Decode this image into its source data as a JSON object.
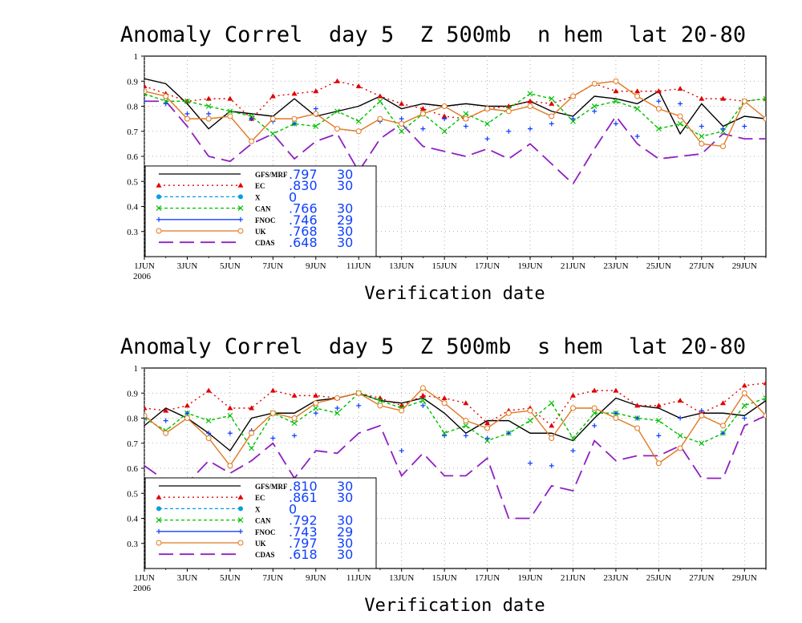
{
  "chart_data": [
    {
      "type": "line",
      "title": "Anomaly Correl  day 5  Z 500mb  n hem  lat 20-80",
      "xlabel": "Verification date",
      "ylabel": "",
      "ylim": [
        0.2,
        1.0
      ],
      "xlim": [
        1,
        30
      ],
      "yticks": [
        "1",
        "0.9",
        "0.8",
        "0.7",
        "0.6",
        "0.5",
        "0.4",
        "0.3"
      ],
      "xticks": [
        {
          "day": 1,
          "label": "1JUN",
          "sub": "2006"
        },
        {
          "day": 3,
          "label": "3JUN"
        },
        {
          "day": 5,
          "label": "5JUN"
        },
        {
          "day": 7,
          "label": "7JUN"
        },
        {
          "day": 9,
          "label": "9JUN"
        },
        {
          "day": 11,
          "label": "11JUN"
        },
        {
          "day": 13,
          "label": "13JUN"
        },
        {
          "day": 15,
          "label": "15JUN"
        },
        {
          "day": 17,
          "label": "17JUN"
        },
        {
          "day": 19,
          "label": "19JUN"
        },
        {
          "day": 21,
          "label": "21JUN"
        },
        {
          "day": 23,
          "label": "23JUN"
        },
        {
          "day": 25,
          "label": "25JUN"
        },
        {
          "day": 27,
          "label": "27JUN"
        },
        {
          "day": 29,
          "label": "29JUN"
        }
      ],
      "grid": true,
      "legend_placement": "bottom-left",
      "series": [
        {
          "name": "GFS/MRF",
          "mean": ".797",
          "count": "30",
          "color": "#000000",
          "dash": "",
          "marker": "none",
          "x": [
            1,
            2,
            3,
            4,
            5,
            6,
            7,
            8,
            9,
            10,
            11,
            12,
            13,
            14,
            15,
            16,
            17,
            18,
            19,
            20,
            21,
            22,
            23,
            24,
            25,
            26,
            27,
            28,
            29,
            30
          ],
          "values": [
            0.91,
            0.89,
            0.81,
            0.71,
            0.78,
            0.77,
            0.76,
            0.83,
            0.76,
            0.78,
            0.8,
            0.84,
            0.79,
            0.81,
            0.8,
            0.81,
            0.8,
            0.8,
            0.82,
            0.78,
            0.76,
            0.84,
            0.83,
            0.81,
            0.86,
            0.69,
            0.81,
            0.72,
            0.76,
            0.75
          ]
        },
        {
          "name": "EC",
          "mean": ".830",
          "count": "30",
          "color": "#e00000",
          "dash": "2,4",
          "marker": "triangle",
          "x": [
            1,
            2,
            3,
            4,
            5,
            6,
            7,
            8,
            9,
            10,
            11,
            12,
            13,
            14,
            15,
            16,
            17,
            18,
            19,
            20,
            21,
            22,
            23,
            24,
            25,
            26,
            27,
            28,
            29,
            30
          ],
          "values": [
            0.88,
            0.85,
            0.82,
            0.83,
            0.83,
            0.75,
            0.84,
            0.85,
            0.86,
            0.9,
            0.88,
            0.84,
            0.81,
            0.79,
            0.76,
            0.75,
            0.79,
            0.8,
            0.82,
            0.81,
            0.84,
            0.89,
            0.86,
            0.86,
            0.86,
            0.87,
            0.83,
            0.83,
            0.82,
            0.83
          ]
        },
        {
          "name": "X",
          "mean": "0",
          "count": "",
          "color": "#00a0e0",
          "dash": "4,3",
          "marker": "circle",
          "x": [],
          "values": []
        },
        {
          "name": "CAN",
          "mean": ".766",
          "count": "30",
          "color": "#00c000",
          "dash": "4,3",
          "marker": "x",
          "x": [
            1,
            2,
            3,
            4,
            5,
            6,
            7,
            8,
            9,
            10,
            11,
            12,
            13,
            14,
            15,
            16,
            17,
            18,
            19,
            20,
            21,
            22,
            23,
            24,
            25,
            26,
            27,
            28,
            29,
            30
          ],
          "values": [
            0.85,
            0.82,
            0.82,
            0.8,
            0.78,
            0.76,
            0.69,
            0.73,
            0.72,
            0.78,
            0.74,
            0.82,
            0.7,
            0.77,
            0.7,
            0.77,
            0.73,
            0.79,
            0.85,
            0.83,
            0.74,
            0.8,
            0.82,
            0.79,
            0.71,
            0.73,
            0.68,
            0.7,
            0.82,
            0.83
          ]
        },
        {
          "name": "FNOC",
          "mean": ".746",
          "count": "29",
          "color": "#1040ff",
          "dash": "",
          "marker": "plus",
          "x": [
            1,
            2,
            3,
            4,
            5,
            6,
            7,
            8,
            9,
            10,
            11,
            12,
            13,
            14,
            15,
            16,
            17,
            18,
            19,
            20,
            21,
            22,
            23,
            24,
            25,
            26,
            27,
            28,
            29
          ],
          "values": [
            0.82,
            0.81,
            0.77,
            0.77,
            0.76,
            0.75,
            0.74,
            0.73,
            0.79,
            0.71,
            0.7,
            0.74,
            0.75,
            0.71,
            0.75,
            0.72,
            0.67,
            0.7,
            0.71,
            0.73,
            0.75,
            0.78,
            0.73,
            0.68,
            0.82,
            0.81,
            0.72,
            0.71,
            0.72
          ]
        },
        {
          "name": "UK",
          "mean": ".768",
          "count": "30",
          "color": "#e07820",
          "dash": "",
          "marker": "circle-open",
          "x": [
            1,
            2,
            3,
            4,
            5,
            6,
            7,
            8,
            9,
            10,
            11,
            12,
            13,
            14,
            15,
            16,
            17,
            18,
            19,
            20,
            21,
            22,
            23,
            24,
            25,
            26,
            27,
            28,
            29,
            30
          ],
          "values": [
            0.86,
            0.84,
            0.75,
            0.75,
            0.76,
            0.66,
            0.75,
            0.75,
            0.77,
            0.71,
            0.7,
            0.75,
            0.73,
            0.77,
            0.8,
            0.75,
            0.79,
            0.78,
            0.8,
            0.76,
            0.84,
            0.89,
            0.9,
            0.84,
            0.79,
            0.76,
            0.65,
            0.64,
            0.82,
            0.75
          ]
        },
        {
          "name": "CDAS",
          "mean": ".648",
          "count": "30",
          "color": "#9020c0",
          "dash": "18,8",
          "marker": "none",
          "x": [
            1,
            2,
            3,
            4,
            5,
            6,
            7,
            8,
            9,
            10,
            11,
            12,
            13,
            14,
            15,
            16,
            17,
            18,
            19,
            20,
            21,
            22,
            23,
            24,
            25,
            26,
            27,
            28,
            29,
            30
          ],
          "values": [
            0.82,
            0.82,
            0.72,
            0.6,
            0.58,
            0.65,
            0.69,
            0.59,
            0.66,
            0.69,
            0.54,
            0.67,
            0.73,
            0.64,
            0.62,
            0.6,
            0.63,
            0.59,
            0.65,
            0.57,
            0.49,
            0.63,
            0.76,
            0.65,
            0.59,
            0.6,
            0.61,
            0.69,
            0.67,
            0.67
          ]
        }
      ]
    },
    {
      "type": "line",
      "title": "Anomaly Correl  day 5  Z 500mb  s hem  lat 20-80",
      "xlabel": "Verification date",
      "ylabel": "",
      "ylim": [
        0.2,
        1.0
      ],
      "xlim": [
        1,
        30
      ],
      "yticks": [
        "1",
        "0.9",
        "0.8",
        "0.7",
        "0.6",
        "0.5",
        "0.4",
        "0.3"
      ],
      "xticks": [
        {
          "day": 1,
          "label": "1JUN",
          "sub": "2006"
        },
        {
          "day": 3,
          "label": "3JUN"
        },
        {
          "day": 5,
          "label": "5JUN"
        },
        {
          "day": 7,
          "label": "7JUN"
        },
        {
          "day": 9,
          "label": "9JUN"
        },
        {
          "day": 11,
          "label": "11JUN"
        },
        {
          "day": 13,
          "label": "13JUN"
        },
        {
          "day": 15,
          "label": "15JUN"
        },
        {
          "day": 17,
          "label": "17JUN"
        },
        {
          "day": 19,
          "label": "19JUN"
        },
        {
          "day": 21,
          "label": "21JUN"
        },
        {
          "day": 23,
          "label": "23JUN"
        },
        {
          "day": 25,
          "label": "25JUN"
        },
        {
          "day": 27,
          "label": "27JUN"
        },
        {
          "day": 29,
          "label": "29JUN"
        }
      ],
      "grid": true,
      "legend_placement": "bottom-left",
      "series": [
        {
          "name": "GFS/MRF",
          "mean": ".810",
          "count": "30",
          "color": "#000000",
          "dash": "",
          "marker": "none",
          "x": [
            1,
            2,
            3,
            4,
            5,
            6,
            7,
            8,
            9,
            10,
            11,
            12,
            13,
            14,
            15,
            16,
            17,
            18,
            19,
            20,
            21,
            22,
            23,
            24,
            25,
            26,
            27,
            28,
            29,
            30
          ],
          "values": [
            0.77,
            0.84,
            0.8,
            0.74,
            0.67,
            0.8,
            0.82,
            0.82,
            0.87,
            0.88,
            0.9,
            0.87,
            0.86,
            0.88,
            0.82,
            0.74,
            0.79,
            0.79,
            0.74,
            0.74,
            0.71,
            0.8,
            0.88,
            0.85,
            0.84,
            0.8,
            0.82,
            0.82,
            0.81,
            0.87
          ]
        },
        {
          "name": "EC",
          "mean": ".861",
          "count": "30",
          "color": "#e00000",
          "dash": "2,4",
          "marker": "triangle",
          "x": [
            1,
            2,
            3,
            4,
            5,
            6,
            7,
            8,
            9,
            10,
            11,
            12,
            13,
            14,
            15,
            16,
            17,
            18,
            19,
            20,
            21,
            22,
            23,
            24,
            25,
            26,
            27,
            28,
            29,
            30
          ],
          "values": [
            0.84,
            0.83,
            0.85,
            0.91,
            0.84,
            0.84,
            0.91,
            0.89,
            0.89,
            0.88,
            0.9,
            0.88,
            0.85,
            0.89,
            0.88,
            0.86,
            0.78,
            0.83,
            0.84,
            0.77,
            0.89,
            0.91,
            0.91,
            0.85,
            0.85,
            0.87,
            0.82,
            0.86,
            0.93,
            0.94
          ]
        },
        {
          "name": "X",
          "mean": "0",
          "count": "",
          "color": "#00a0e0",
          "dash": "4,3",
          "marker": "circle",
          "x": [],
          "values": []
        },
        {
          "name": "CAN",
          "mean": ".792",
          "count": "30",
          "color": "#00c000",
          "dash": "4,3",
          "marker": "x",
          "x": [
            1,
            2,
            3,
            4,
            5,
            6,
            7,
            8,
            9,
            10,
            11,
            12,
            13,
            14,
            15,
            16,
            17,
            18,
            19,
            20,
            21,
            22,
            23,
            24,
            25,
            26,
            27,
            28,
            29,
            30
          ],
          "values": [
            0.8,
            0.75,
            0.82,
            0.79,
            0.81,
            0.68,
            0.82,
            0.78,
            0.84,
            0.82,
            0.9,
            0.87,
            0.84,
            0.87,
            0.74,
            0.77,
            0.71,
            0.74,
            0.79,
            0.86,
            0.72,
            0.82,
            0.82,
            0.8,
            0.79,
            0.73,
            0.7,
            0.74,
            0.85,
            0.88
          ]
        },
        {
          "name": "FNOC",
          "mean": ".743",
          "count": "29",
          "color": "#1040ff",
          "dash": "",
          "marker": "plus",
          "x": [
            1,
            2,
            3,
            4,
            5,
            6,
            7,
            8,
            9,
            10,
            11,
            12,
            13,
            14,
            15,
            16,
            17,
            18,
            19,
            20,
            21,
            22,
            23,
            24,
            25,
            26,
            27,
            28,
            29
          ],
          "values": [
            0.8,
            0.79,
            0.82,
            0.74,
            0.74,
            0.75,
            0.72,
            0.73,
            0.82,
            0.84,
            0.85,
            0.85,
            0.67,
            0.85,
            0.73,
            0.73,
            0.72,
            0.74,
            0.62,
            0.61,
            0.67,
            0.77,
            0.82,
            0.8,
            0.73,
            0.8,
            0.83,
            0.74,
            0.8
          ]
        },
        {
          "name": "UK",
          "mean": ".797",
          "count": "30",
          "color": "#e07820",
          "dash": "",
          "marker": "circle-open",
          "x": [
            1,
            2,
            3,
            4,
            5,
            6,
            7,
            8,
            9,
            10,
            11,
            12,
            13,
            14,
            15,
            16,
            17,
            18,
            19,
            20,
            21,
            22,
            23,
            24,
            25,
            26,
            27,
            28,
            29,
            30
          ],
          "values": [
            0.81,
            0.74,
            0.8,
            0.72,
            0.61,
            0.74,
            0.82,
            0.8,
            0.86,
            0.88,
            0.9,
            0.85,
            0.83,
            0.92,
            0.86,
            0.79,
            0.76,
            0.82,
            0.83,
            0.72,
            0.84,
            0.84,
            0.8,
            0.76,
            0.62,
            0.68,
            0.81,
            0.77,
            0.9,
            0.81
          ]
        },
        {
          "name": "CDAS",
          "mean": ".618",
          "count": "30",
          "color": "#9020c0",
          "dash": "18,8",
          "marker": "none",
          "x": [
            1,
            2,
            3,
            4,
            5,
            6,
            7,
            8,
            9,
            10,
            11,
            12,
            13,
            14,
            15,
            16,
            17,
            18,
            19,
            20,
            21,
            22,
            23,
            24,
            25,
            26,
            27,
            28,
            29,
            30
          ],
          "values": [
            0.61,
            0.55,
            0.54,
            0.63,
            0.58,
            0.63,
            0.7,
            0.56,
            0.67,
            0.66,
            0.74,
            0.77,
            0.57,
            0.66,
            0.57,
            0.57,
            0.64,
            0.4,
            0.4,
            0.53,
            0.51,
            0.71,
            0.63,
            0.65,
            0.65,
            0.69,
            0.56,
            0.56,
            0.77,
            0.81
          ]
        }
      ]
    }
  ]
}
